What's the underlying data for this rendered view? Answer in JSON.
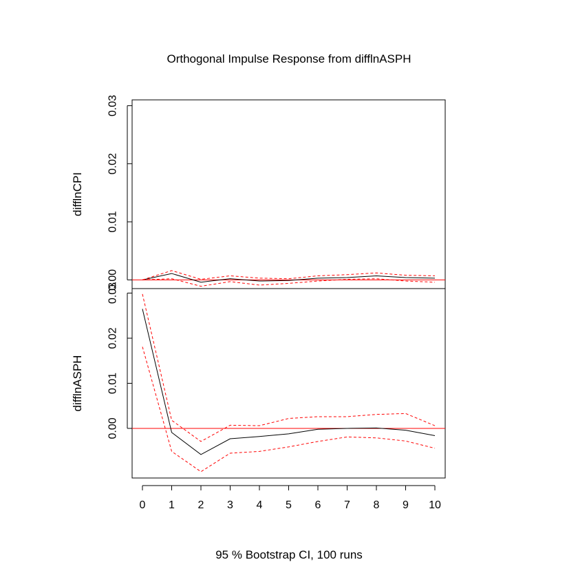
{
  "chart_data": {
    "type": "line",
    "title": "Orthogonal Impulse Response from difflnASPH",
    "xlabel": "95 % Bootstrap CI,  100 runs",
    "x_ticks": [
      "0",
      "1",
      "2",
      "3",
      "4",
      "5",
      "6",
      "7",
      "8",
      "9",
      "10"
    ],
    "y_ticks": [
      "0.00",
      "0.01",
      "0.02",
      "0.03"
    ],
    "xlim": [
      0,
      10
    ],
    "grid": false,
    "colors": {
      "response": "#000000",
      "ci": "#ff0000",
      "zero_line": "#ff0000"
    },
    "panels": [
      {
        "ylabel": "difflnCPI",
        "ylim": [
          -0.0015,
          0.031
        ],
        "x": [
          0,
          1,
          2,
          3,
          4,
          5,
          6,
          7,
          8,
          9,
          10
        ],
        "series": [
          {
            "role": "response",
            "values": [
              0.0,
              0.0011,
              -0.0004,
              0.0002,
              -0.0002,
              -0.0001,
              0.0003,
              0.0004,
              0.0007,
              0.0004,
              0.0003
            ]
          },
          {
            "role": "upper",
            "values": [
              0.0,
              0.0016,
              0.0001,
              0.0007,
              0.0003,
              0.0002,
              0.0007,
              0.0009,
              0.0012,
              0.0008,
              0.0007
            ]
          },
          {
            "role": "lower",
            "values": [
              0.0,
              0.0002,
              -0.0011,
              -0.0003,
              -0.0009,
              -0.0006,
              -0.0002,
              0.0001,
              0.0002,
              -0.0002,
              -0.0004
            ]
          }
        ]
      },
      {
        "ylabel": "difflnASPH",
        "ylim": [
          -0.011,
          0.031
        ],
        "x": [
          0,
          1,
          2,
          3,
          4,
          5,
          6,
          7,
          8,
          9,
          10
        ],
        "series": [
          {
            "role": "response",
            "values": [
              0.0265,
              -0.0009,
              -0.0058,
              -0.0023,
              -0.0018,
              -0.0012,
              -0.0002,
              0.0,
              0.0001,
              -0.0004,
              -0.0016
            ]
          },
          {
            "role": "upper",
            "values": [
              0.0298,
              0.0018,
              -0.0029,
              0.0007,
              0.0006,
              0.0022,
              0.0026,
              0.0026,
              0.0031,
              0.0033,
              0.0006
            ]
          },
          {
            "role": "lower",
            "values": [
              0.0181,
              -0.0051,
              -0.0096,
              -0.0055,
              -0.0051,
              -0.0041,
              -0.0029,
              -0.0019,
              -0.0021,
              -0.0028,
              -0.0044
            ]
          }
        ]
      }
    ]
  }
}
